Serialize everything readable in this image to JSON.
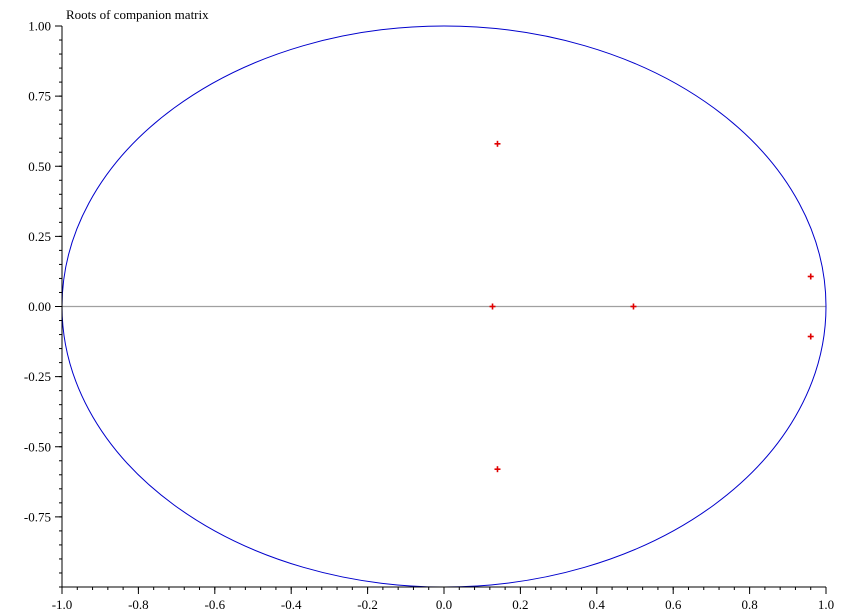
{
  "chart_data": {
    "type": "scatter",
    "title": "Roots of companion matrix",
    "xlabel": "",
    "ylabel": "",
    "xlim": [
      -1.0,
      1.0
    ],
    "ylim": [
      -1.0,
      1.0
    ],
    "grid": false,
    "x_ticks": [
      -1.0,
      -0.8,
      -0.6,
      -0.4,
      -0.2,
      0.0,
      0.2,
      0.4,
      0.6,
      0.8,
      1.0
    ],
    "x_tick_labels": [
      "-1.0",
      "-0.8",
      "-0.6",
      "-0.4",
      "-0.2",
      "0.0",
      "0.2",
      "0.4",
      "0.6",
      "0.8",
      "1.0"
    ],
    "y_ticks": [
      1.0,
      0.75,
      0.5,
      0.25,
      0.0,
      -0.25,
      -0.5,
      -0.75
    ],
    "y_tick_labels": [
      "1.00",
      "0.75",
      "0.50",
      "0.25",
      "0.00",
      "-0.25",
      "-0.50",
      "-0.75"
    ],
    "unit_circle": {
      "radius": 1.0,
      "color": "#0000cc"
    },
    "zero_line": {
      "y": 0.0,
      "color": "#a0a0a0"
    },
    "marker_color": "#e00000",
    "points": [
      {
        "x": 0.14,
        "y": 0.58
      },
      {
        "x": 0.14,
        "y": -0.58
      },
      {
        "x": 0.127,
        "y": 0.0
      },
      {
        "x": 0.496,
        "y": 0.0
      },
      {
        "x": 0.96,
        "y": 0.107
      },
      {
        "x": 0.96,
        "y": -0.107
      }
    ]
  }
}
